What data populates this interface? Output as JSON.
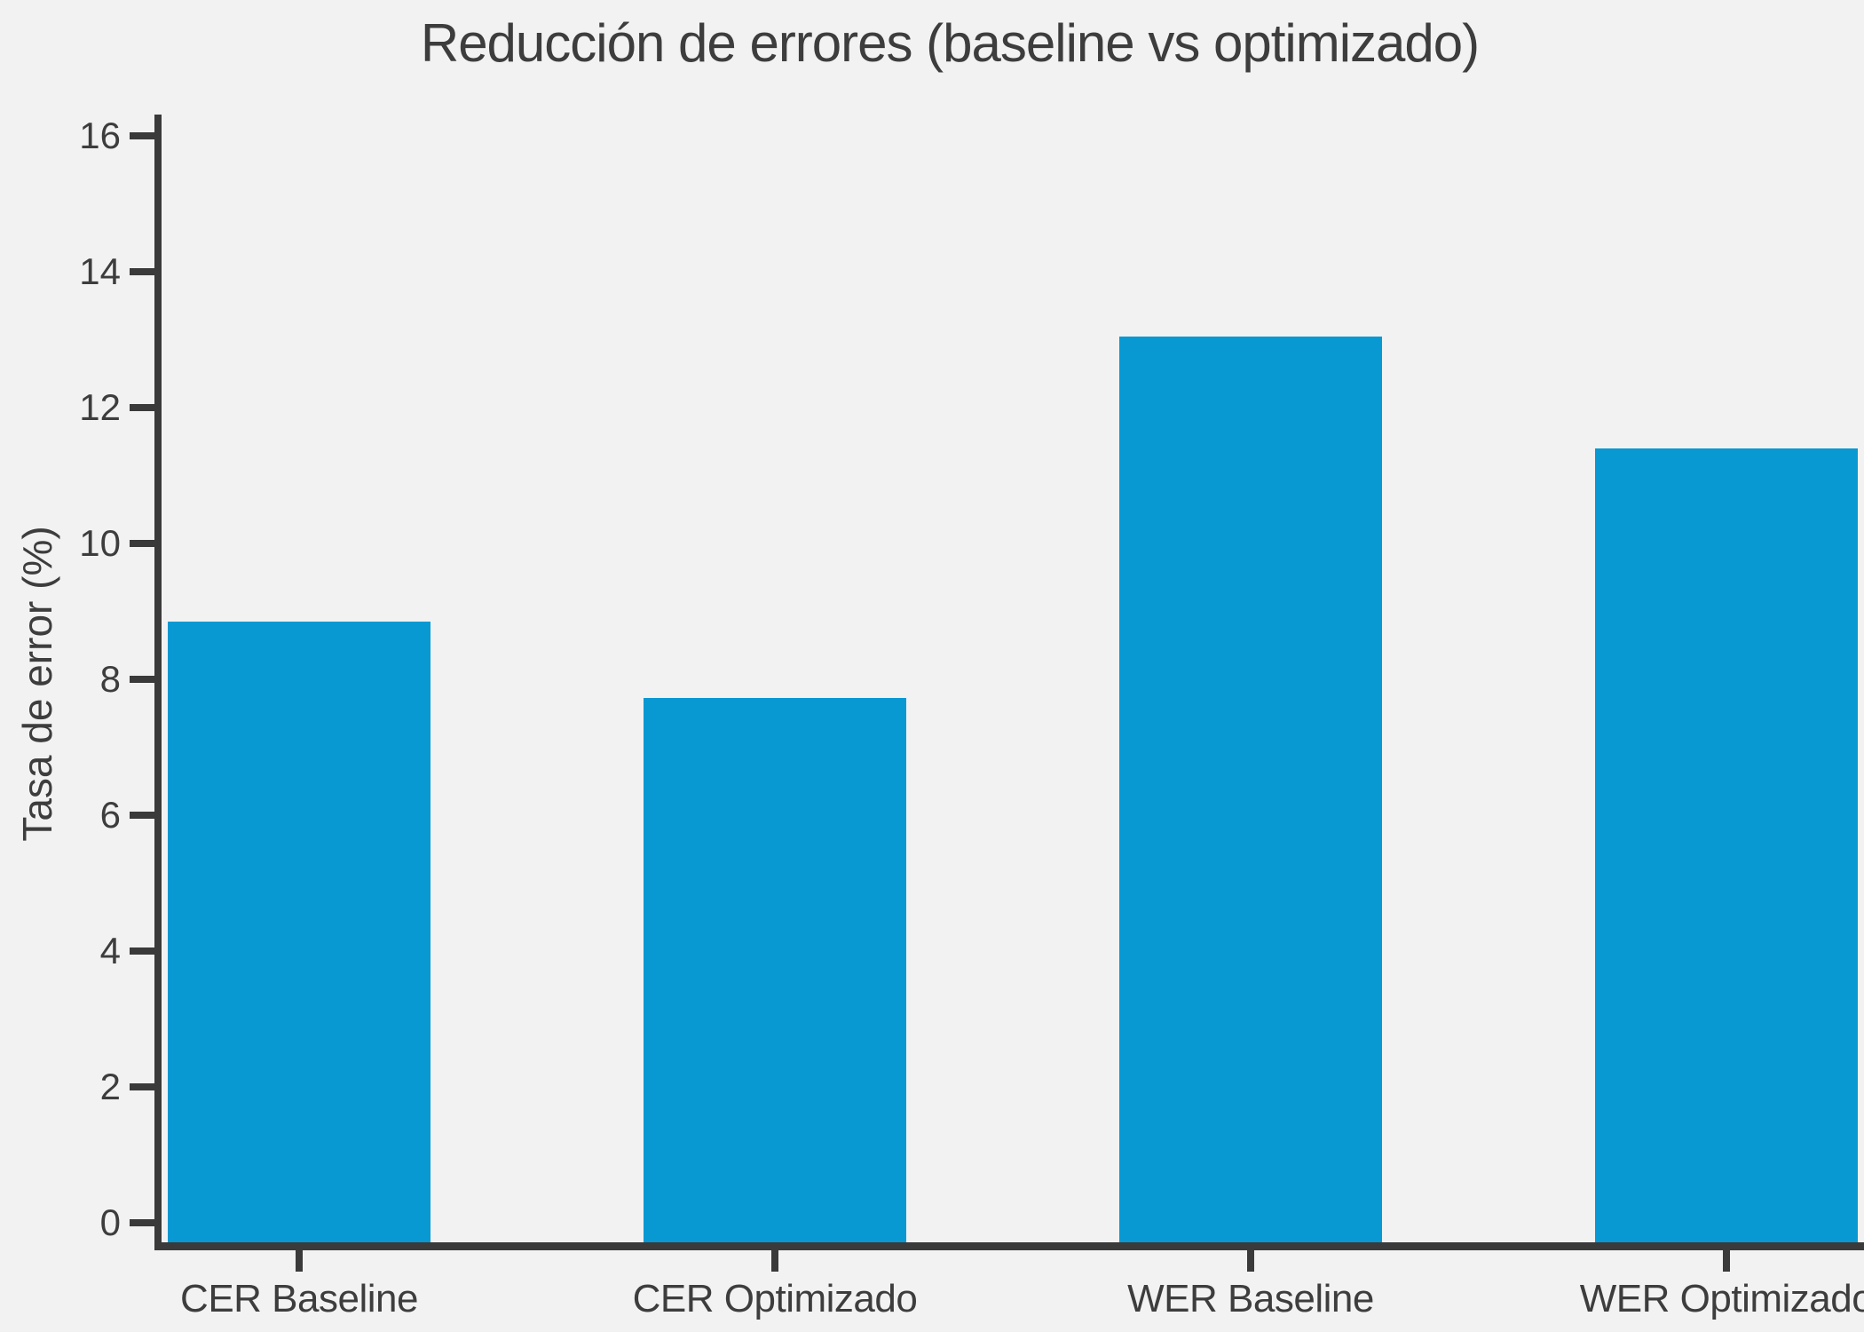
{
  "chart_data": {
    "type": "bar",
    "title": "Reducción de errores (baseline vs optimizado)",
    "ylabel": "Tasa de error (%)",
    "xlabel": "",
    "categories": [
      "CER Baseline",
      "CER Optimizado",
      "WER Baseline",
      "WER Optimizado"
    ],
    "values": [
      8.85,
      7.73,
      13.05,
      11.4
    ],
    "ylim": [
      0,
      16
    ],
    "yticks": [
      0,
      2,
      4,
      6,
      8,
      10,
      12,
      14,
      16
    ],
    "grid": false,
    "legend": "none",
    "colors": {
      "bar": "#0899d3",
      "axis": "#3a3a3a",
      "text": "#3d3d3d",
      "background": "#f2f2f2"
    }
  }
}
